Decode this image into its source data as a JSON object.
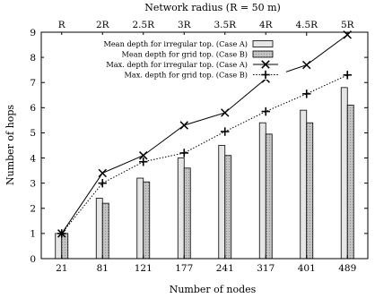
{
  "chart_data": {
    "type": "bar",
    "top_axis_title": "Network radius (R = 50 m)",
    "top_tick_labels": [
      "R",
      "2R",
      "2.5R",
      "3R",
      "3.5R",
      "4R",
      "4.5R",
      "5R"
    ],
    "xlabel": "Number of nodes",
    "ylabel": "Number of hops",
    "categories": [
      "21",
      "81",
      "121",
      "177",
      "241",
      "317",
      "401",
      "489"
    ],
    "ylim": [
      0,
      9
    ],
    "yticks": [
      0,
      1,
      2,
      3,
      4,
      5,
      6,
      7,
      8,
      9
    ],
    "grid": false,
    "legend_position": "top-left",
    "series": [
      {
        "name": "Mean depth for irregular top. (Case A)",
        "kind": "bar",
        "fill": "#e6e6e6",
        "values": [
          1.0,
          2.4,
          3.2,
          4.0,
          4.5,
          5.4,
          5.9,
          6.8
        ]
      },
      {
        "name": "Mean depth for grid top. (Case B)",
        "kind": "bar",
        "fill": "#b8b8b8",
        "values": [
          1.0,
          2.2,
          3.05,
          3.6,
          4.1,
          4.95,
          5.4,
          6.1
        ]
      },
      {
        "name": "Max. depth for irregular top. (Case A)",
        "kind": "line",
        "marker": "x",
        "dash": "solid",
        "values": [
          1,
          3.4,
          4.1,
          5.3,
          5.8,
          7.15,
          7.7,
          8.9
        ]
      },
      {
        "name": "Max. depth for grid top. (Case B)",
        "kind": "line",
        "marker": "+",
        "dash": "dotted",
        "values": [
          1,
          3.0,
          3.85,
          4.2,
          5.05,
          5.85,
          6.55,
          7.3
        ]
      }
    ]
  }
}
